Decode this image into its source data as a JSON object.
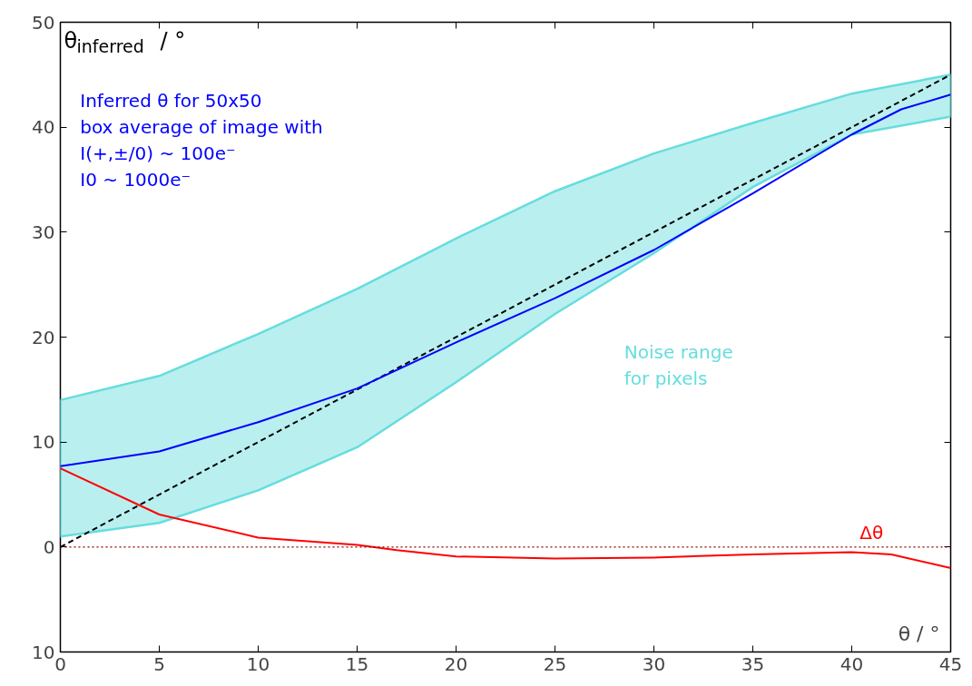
{
  "chart_data": {
    "type": "line",
    "ylabel": "θ$_{inferred}$ / °",
    "xlabel": "θ / °",
    "xlim": [
      0,
      45
    ],
    "ylim": [
      -10,
      50
    ],
    "xticks": [
      0,
      5,
      10,
      15,
      20,
      25,
      30,
      35,
      40,
      45
    ],
    "yticks": [
      {
        "value": -10,
        "label": "10"
      },
      0,
      10,
      20,
      30,
      40,
      50
    ],
    "grid": false,
    "series": [
      {
        "name": "Noise range\nfor pixels",
        "color": "#66dddd",
        "x": [
          0,
          5,
          10,
          15,
          20,
          25,
          30,
          35,
          40,
          45
        ],
        "values": [
          null,
          null,
          null,
          null,
          null,
          null,
          null,
          null,
          null,
          null
        ],
        "upper": [
          14,
          16.3,
          20.3,
          24.6,
          29.4,
          33.9,
          37.5,
          40.4,
          43.2,
          45
        ],
        "lower": [
          1.0,
          2.3,
          5.4,
          9.5,
          15.7,
          22.2,
          28,
          34.3,
          39.3,
          41
        ]
      },
      {
        "line_style": "dashed",
        "color": "#000000",
        "x": [
          0,
          45
        ],
        "values": [
          0,
          45
        ]
      },
      {
        "name": "Inferred θ for 50x50\nbox average of image with\nI(+,±/0) ~ 100e⁻\nI0 ~ 1000e⁻",
        "color": "#0000ff",
        "x": [
          0,
          5,
          10,
          15,
          20,
          25,
          30,
          35,
          40,
          42.5,
          45
        ],
        "values": [
          7.7,
          9.1,
          11.9,
          15.1,
          19.5,
          23.7,
          28.3,
          33.7,
          39.3,
          41.7,
          43.1
        ]
      },
      {
        "name": "Δθ",
        "color": "#ff0000",
        "x": [
          0,
          5,
          10,
          15,
          17,
          20,
          25,
          30,
          35,
          40,
          42,
          45
        ],
        "values": [
          7.5,
          3.1,
          0.9,
          0.2,
          -0.3,
          -0.9,
          -1.1,
          -1.0,
          -0.7,
          -0.5,
          -0.7,
          -2.0
        ]
      }
    ],
    "ref_lines": [
      {
        "axis": "y",
        "value": 0,
        "color": "#8b0000",
        "line_style": "dotted"
      }
    ]
  }
}
